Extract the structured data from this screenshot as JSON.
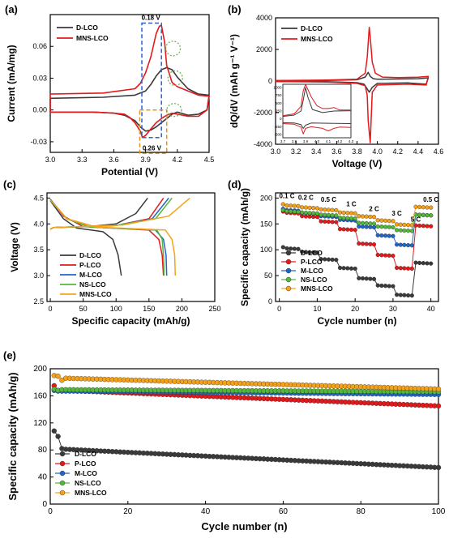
{
  "colors": {
    "black": "#3a3a3a",
    "red": "#e31a1c",
    "blue": "#2166c4",
    "green": "#55b83a",
    "orange": "#f5a21a",
    "dash_blue": "#2b5fcf",
    "dash_orange": "#e8941a",
    "dot_green": "#6aa84f"
  },
  "chart_data": [
    {
      "panel": "(a)",
      "type": "line",
      "xlabel": "Potential (V)",
      "ylabel": "Current (mA/mg)",
      "xlim": [
        3.0,
        4.5
      ],
      "ylim": [
        -0.04,
        0.09
      ],
      "xticks": [
        "3.0",
        "3.3",
        "3.6",
        "3.9",
        "4.2",
        "4.5"
      ],
      "yticks": [
        "-0.03",
        "0.00",
        "0.03",
        "0.06"
      ],
      "legend": "top-left",
      "annotations": [
        "0.18 V",
        "0.26 V"
      ],
      "series": [
        {
          "name": "D-LCO",
          "color": "#3a3a3a",
          "x": [
            3.0,
            3.5,
            3.8,
            3.9,
            3.95,
            4.0,
            4.05,
            4.1,
            4.15,
            4.2,
            4.3,
            4.4,
            4.5,
            4.48,
            4.4,
            4.3,
            4.2,
            4.15,
            4.1,
            4.05,
            4.0,
            3.95,
            3.9,
            3.85,
            3.8,
            3.7,
            3.6,
            3.4,
            3.2,
            3.0
          ],
          "y": [
            0.011,
            0.012,
            0.014,
            0.018,
            0.024,
            0.032,
            0.038,
            0.04,
            0.038,
            0.031,
            0.02,
            0.015,
            0.014,
            0.0,
            -0.004,
            -0.005,
            -0.002,
            -0.004,
            -0.008,
            -0.012,
            -0.016,
            -0.019,
            -0.02,
            -0.016,
            -0.01,
            -0.005,
            -0.003,
            -0.002,
            -0.002,
            -0.002
          ]
        },
        {
          "name": "MNS-LCO",
          "color": "#e31a1c",
          "x": [
            3.0,
            3.5,
            3.8,
            3.85,
            3.9,
            3.95,
            4.0,
            4.03,
            4.05,
            4.08,
            4.1,
            4.15,
            4.2,
            4.3,
            4.4,
            4.5,
            4.48,
            4.4,
            4.3,
            4.2,
            4.15,
            4.1,
            4.05,
            4.0,
            3.95,
            3.9,
            3.87,
            3.85,
            3.8,
            3.75,
            3.7,
            3.6,
            3.4,
            3.2,
            3.0
          ],
          "y": [
            0.015,
            0.016,
            0.02,
            0.025,
            0.035,
            0.05,
            0.072,
            0.079,
            0.08,
            0.064,
            0.042,
            0.026,
            0.022,
            0.018,
            0.014,
            0.013,
            0.0,
            -0.006,
            -0.006,
            -0.004,
            -0.003,
            -0.005,
            -0.008,
            -0.012,
            -0.018,
            -0.024,
            -0.026,
            -0.02,
            -0.012,
            -0.007,
            -0.004,
            -0.003,
            -0.002,
            -0.002,
            -0.002
          ]
        }
      ]
    },
    {
      "panel": "(b)",
      "type": "line",
      "xlabel": "Voltage (V)",
      "ylabel": "dQ/dV (mAh g⁻¹ V⁻¹)",
      "xlim": [
        3.0,
        4.6
      ],
      "ylim": [
        -4000,
        4000
      ],
      "xticks": [
        "3.0",
        "3.2",
        "3.4",
        "3.6",
        "3.8",
        "4.0",
        "4.2",
        "4.4",
        "4.6"
      ],
      "yticks": [
        "-4000",
        "-2000",
        "0",
        "2000",
        "4000"
      ],
      "legend": "top-left",
      "inset": {
        "xticks": [
          "3.7",
          "3.8",
          "3.9",
          "4.0",
          "4.1",
          "4.2",
          "4.3"
        ],
        "yticks": [
          "1000",
          "750",
          "500",
          "250",
          "0",
          "-250",
          "-500"
        ]
      },
      "series": [
        {
          "name": "D-LCO",
          "color": "#3a3a3a",
          "x": [
            3.0,
            3.5,
            3.8,
            3.88,
            3.91,
            3.93,
            3.96,
            4.0,
            4.2,
            4.4,
            4.5,
            4.48,
            4.3,
            4.0,
            3.95,
            3.92,
            3.9,
            3.87,
            3.8,
            3.5,
            3.0
          ],
          "y": [
            20,
            40,
            80,
            250,
            550,
            300,
            150,
            120,
            130,
            150,
            200,
            -200,
            -120,
            -150,
            -400,
            -700,
            -500,
            -200,
            -100,
            -40,
            -20
          ]
        },
        {
          "name": "MNS-LCO",
          "color": "#e31a1c",
          "x": [
            3.0,
            3.5,
            3.8,
            3.88,
            3.9,
            3.92,
            3.93,
            3.95,
            3.98,
            4.05,
            4.2,
            4.4,
            4.5,
            4.48,
            4.3,
            4.0,
            3.95,
            3.93,
            3.91,
            3.9,
            3.88,
            3.8,
            3.5,
            3.0
          ],
          "y": [
            30,
            60,
            120,
            500,
            1500,
            3400,
            2800,
            1200,
            500,
            250,
            220,
            240,
            300,
            -250,
            -200,
            -250,
            -700,
            -3900,
            -2500,
            -900,
            -300,
            -150,
            -60,
            -30
          ]
        }
      ]
    },
    {
      "panel": "(c)",
      "type": "line",
      "xlabel": "Specific capacity (mAh/g)",
      "ylabel": "Voltage (V)",
      "xlim": [
        -5,
        250
      ],
      "ylim": [
        2.5,
        4.6
      ],
      "xticks": [
        "0",
        "50",
        "100",
        "150",
        "200",
        "250"
      ],
      "yticks": [
        "2.5",
        "3.0",
        "3.5",
        "4.0",
        "4.5"
      ],
      "legend": "bottom-left",
      "series": [
        {
          "name": "D-LCO",
          "color": "#3a3a3a",
          "charge": [
            [
              0,
              3.9
            ],
            [
              5,
              3.93
            ],
            [
              60,
              3.95
            ],
            [
              100,
              4.0
            ],
            [
              130,
              4.2
            ],
            [
              148,
              4.5
            ]
          ],
          "discharge": [
            [
              0,
              4.45
            ],
            [
              20,
              4.1
            ],
            [
              40,
              3.92
            ],
            [
              80,
              3.85
            ],
            [
              95,
              3.7
            ],
            [
              103,
              3.4
            ],
            [
              108,
              3.0
            ]
          ]
        },
        {
          "name": "P-LCO",
          "color": "#e31a1c",
          "charge": [
            [
              0,
              3.9
            ],
            [
              5,
              3.93
            ],
            [
              100,
              3.97
            ],
            [
              150,
              4.1
            ],
            [
              172,
              4.5
            ]
          ],
          "discharge": [
            [
              0,
              4.48
            ],
            [
              20,
              4.15
            ],
            [
              50,
              3.95
            ],
            [
              150,
              3.88
            ],
            [
              165,
              3.7
            ],
            [
              170,
              3.4
            ],
            [
              172,
              3.0
            ]
          ]
        },
        {
          "name": "M-LCO",
          "color": "#2166c4",
          "charge": [
            [
              0,
              3.9
            ],
            [
              5,
              3.93
            ],
            [
              100,
              3.97
            ],
            [
              155,
              4.1
            ],
            [
              180,
              4.5
            ]
          ],
          "discharge": [
            [
              0,
              4.47
            ],
            [
              25,
              4.1
            ],
            [
              60,
              3.94
            ],
            [
              160,
              3.88
            ],
            [
              172,
              3.7
            ],
            [
              176,
              3.4
            ],
            [
              177,
              3.0
            ]
          ]
        },
        {
          "name": "NS-LCO",
          "color": "#55b83a",
          "charge": [
            [
              0,
              3.9
            ],
            [
              5,
              3.93
            ],
            [
              100,
              3.97
            ],
            [
              160,
              4.1
            ],
            [
              185,
              4.5
            ]
          ],
          "discharge": [
            [
              0,
              4.46
            ],
            [
              25,
              4.1
            ],
            [
              60,
              3.94
            ],
            [
              162,
              3.88
            ],
            [
              170,
              3.7
            ],
            [
              172,
              3.4
            ],
            [
              173,
              3.0
            ]
          ]
        },
        {
          "name": "MNS-LCO",
          "color": "#f5a21a",
          "charge": [
            [
              0,
              3.9
            ],
            [
              5,
              3.93
            ],
            [
              110,
              3.98
            ],
            [
              180,
              4.15
            ],
            [
              212,
              4.5
            ]
          ],
          "discharge": [
            [
              0,
              4.46
            ],
            [
              25,
              4.1
            ],
            [
              70,
              3.94
            ],
            [
              175,
              3.88
            ],
            [
              185,
              3.7
            ],
            [
              189,
              3.4
            ],
            [
              190,
              3.0
            ]
          ]
        }
      ]
    },
    {
      "panel": "(d)",
      "type": "scatter",
      "xlabel": "Cycle number (n)",
      "ylabel": "Specific capacity (mAh/g)",
      "xlim": [
        -1,
        42
      ],
      "ylim": [
        0,
        210
      ],
      "xticks": [
        "0",
        "10",
        "20",
        "30",
        "40"
      ],
      "yticks": [
        "0",
        "50",
        "100",
        "150",
        "200"
      ],
      "legend": "bottom-left",
      "rate_labels": [
        "0.1 C",
        "0.2 C",
        "0.5 C",
        "1 C",
        "2 C",
        "3 C",
        "5 C",
        "0.5 C"
      ],
      "series": [
        {
          "name": "D-LCO",
          "color": "#3a3a3a",
          "levels": [
            103,
            96,
            82,
            65,
            45,
            31,
            13,
            75
          ]
        },
        {
          "name": "P-LCO",
          "color": "#e31a1c",
          "levels": [
            172,
            165,
            155,
            140,
            112,
            90,
            65,
            147
          ]
        },
        {
          "name": "M-LCO",
          "color": "#2166c4",
          "levels": [
            177,
            171,
            165,
            158,
            145,
            128,
            110,
            168
          ]
        },
        {
          "name": "NS-LCO",
          "color": "#55b83a",
          "levels": [
            175,
            172,
            168,
            162,
            152,
            145,
            138,
            168
          ]
        },
        {
          "name": "MNS-LCO",
          "color": "#f5a21a",
          "levels": [
            186,
            182,
            178,
            172,
            165,
            157,
            149,
            183
          ]
        }
      ]
    },
    {
      "panel": "(e)",
      "type": "scatter",
      "xlabel": "Cycle number (n)",
      "ylabel": "Specific capacity (mAh/g)",
      "xlim": [
        0,
        100
      ],
      "ylim": [
        0,
        200
      ],
      "xticks": [
        "0",
        "20",
        "40",
        "60",
        "80",
        "100"
      ],
      "yticks": [
        "0",
        "40",
        "80",
        "120",
        "160",
        "200"
      ],
      "legend": "bottom-left",
      "series": [
        {
          "name": "D-LCO",
          "color": "#3a3a3a",
          "first": [
            108,
            100,
            82
          ],
          "start": 81,
          "end": 54
        },
        {
          "name": "P-LCO",
          "color": "#e31a1c",
          "first": [
            175,
            168,
            168
          ],
          "start": 168,
          "end": 145
        },
        {
          "name": "M-LCO",
          "color": "#2166c4",
          "first": [
            168,
            167,
            167
          ],
          "start": 167,
          "end": 162
        },
        {
          "name": "NS-LCO",
          "color": "#55b83a",
          "first": [
            170,
            168,
            169
          ],
          "start": 169,
          "end": 166
        },
        {
          "name": "MNS-LCO",
          "color": "#f5a21a",
          "first": [
            190,
            189,
            183
          ],
          "start": 186,
          "end": 170
        }
      ]
    }
  ]
}
